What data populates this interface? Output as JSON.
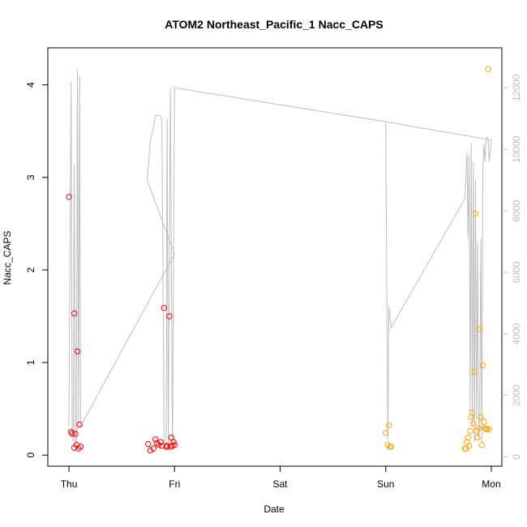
{
  "chart_data": {
    "type": "scatter",
    "title": "ATOM2 Northeast_Pacific_1 Nacc_CAPS",
    "xlabel": "Date",
    "ylabel": "Nacc_CAPS",
    "x_unit": "days since Thu 00:00 (Thu, Fri, Sat, Sun, Mon)",
    "x_ticks": [
      {
        "value": 0,
        "label": "Thu"
      },
      {
        "value": 1,
        "label": "Fri"
      },
      {
        "value": 2,
        "label": "Sat"
      },
      {
        "value": 3,
        "label": "Sun"
      },
      {
        "value": 4,
        "label": "Mon"
      }
    ],
    "xlim": [
      -0.2,
      4.1
    ],
    "ylim": [
      -0.12,
      4.4
    ],
    "y_ticks": [
      0,
      1,
      2,
      3,
      4
    ],
    "y2lim": [
      -300,
      13300
    ],
    "y2_ticks": [
      0,
      2000,
      4000,
      6000,
      8000,
      10000,
      12000
    ],
    "colors": {
      "series_red": "#ff0000",
      "series_orange": "#ffa500",
      "line": "#bebebe"
    },
    "series": [
      {
        "name": "red",
        "color": "#ff0000",
        "x": [
          0.0,
          0.02,
          0.03,
          0.05,
          0.05,
          0.06,
          0.07,
          0.08,
          0.09,
          0.1,
          0.11,
          0.75,
          0.77,
          0.8,
          0.82,
          0.83,
          0.85,
          0.87,
          0.88,
          0.9,
          0.92,
          0.93,
          0.95,
          0.96,
          0.97,
          0.98,
          0.99,
          1.0
        ],
        "values": [
          2.79,
          0.25,
          0.23,
          0.08,
          1.53,
          0.23,
          0.11,
          1.12,
          0.07,
          0.33,
          0.09,
          0.12,
          0.05,
          0.07,
          0.17,
          0.13,
          0.11,
          0.14,
          0.1,
          1.59,
          0.09,
          0.1,
          1.5,
          0.09,
          0.19,
          0.1,
          0.14,
          0.11
        ]
      },
      {
        "name": "orange",
        "color": "#ffa500",
        "x": [
          3.0,
          3.02,
          3.03,
          3.04,
          3.05,
          3.75,
          3.76,
          3.77,
          3.78,
          3.79,
          3.8,
          3.81,
          3.82,
          3.83,
          3.84,
          3.85,
          3.86,
          3.87,
          3.88,
          3.89,
          3.9,
          3.91,
          3.92,
          3.93,
          3.94,
          3.95,
          3.96,
          3.97,
          3.98
        ],
        "values": [
          0.24,
          0.11,
          0.32,
          0.09,
          0.09,
          0.07,
          0.07,
          0.14,
          0.19,
          0.1,
          0.26,
          0.41,
          0.46,
          0.34,
          0.9,
          2.61,
          0.26,
          0.19,
          0.29,
          1.36,
          0.41,
          0.11,
          0.97,
          0.36,
          0.29,
          0.28,
          0.28,
          4.17,
          0.28
        ]
      },
      {
        "name": "line",
        "axis": "right",
        "color": "#bebebe",
        "x": [
          0.0,
          0.02,
          0.03,
          0.04,
          0.05,
          0.06,
          0.07,
          0.08,
          0.09,
          0.1,
          0.11,
          1.0,
          0.74,
          0.75,
          0.77,
          0.78,
          0.8,
          0.82,
          0.84,
          0.86,
          0.88,
          0.9,
          0.92,
          0.93,
          0.94,
          0.96,
          0.98,
          1.0,
          3.0,
          3.02,
          3.03,
          3.05,
          3.75,
          3.77,
          3.78,
          3.79,
          3.8,
          3.81,
          3.82,
          3.83,
          3.84,
          3.85,
          3.86,
          3.87,
          3.88,
          3.89,
          3.9,
          3.91,
          3.92,
          3.93,
          3.94,
          3.95,
          3.96,
          3.97,
          3.98,
          4.0,
          3.0
        ],
        "values": [
          1000,
          12200,
          800,
          500,
          9500,
          400,
          300,
          12600,
          900,
          12400,
          1000,
          6600,
          9000,
          9400,
          10200,
          10400,
          10700,
          11100,
          11100,
          11100,
          11000,
          600,
          300,
          11000,
          200,
          12000,
          300,
          12000,
          10900,
          600,
          4900,
          4200,
          8400,
          9900,
          7100,
          9800,
          1500,
          10200,
          1000,
          9600,
          500,
          9000,
          1200,
          7000,
          600,
          1000,
          7100,
          500,
          9400,
          10200,
          9600,
          10300,
          10400,
          10300,
          9600,
          10300,
          10900
        ]
      }
    ],
    "grid": false,
    "legend": "none"
  }
}
